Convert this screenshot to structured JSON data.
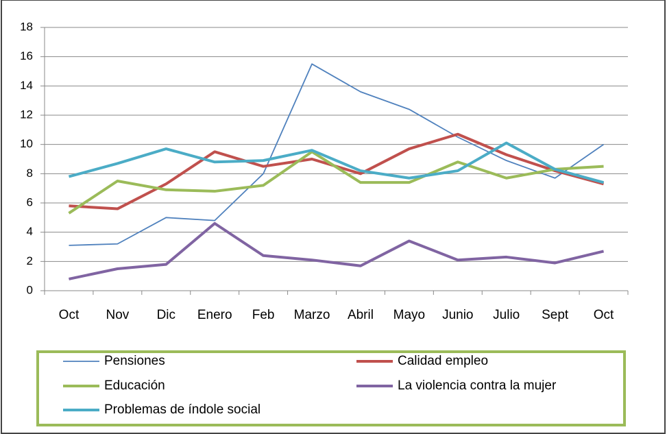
{
  "chart_data": {
    "type": "line",
    "categories": [
      "Oct",
      "Nov",
      "Dic",
      "Enero",
      "Feb",
      "Marzo",
      "Abril",
      "Mayo",
      "Junio",
      "Julio",
      "Sept",
      "Oct"
    ],
    "series": [
      {
        "name": "Pensiones",
        "color": "#4f81bd",
        "width": 1.8,
        "values": [
          3.1,
          3.2,
          5.0,
          4.8,
          8.0,
          15.5,
          13.6,
          12.4,
          10.5,
          8.9,
          7.7,
          10.0
        ]
      },
      {
        "name": "Calidad empleo",
        "color": "#c0504d",
        "width": 4,
        "values": [
          5.8,
          5.6,
          7.3,
          9.5,
          8.5,
          9.0,
          8.0,
          9.7,
          10.7,
          9.3,
          8.2,
          7.3
        ]
      },
      {
        "name": "Educación",
        "color": "#9bbb59",
        "width": 4,
        "values": [
          5.3,
          7.5,
          6.9,
          6.8,
          7.2,
          9.5,
          7.4,
          7.4,
          8.8,
          7.7,
          8.3,
          8.5
        ]
      },
      {
        "name": "La violencia contra la mujer",
        "color": "#8064a2",
        "width": 4,
        "values": [
          0.8,
          1.5,
          1.8,
          4.6,
          2.4,
          2.1,
          1.7,
          3.4,
          2.1,
          2.3,
          1.9,
          2.7
        ]
      },
      {
        "name": "Problemas de índole social",
        "color": "#4bacc6",
        "width": 4,
        "values": [
          7.8,
          8.7,
          9.7,
          8.8,
          8.9,
          9.6,
          8.2,
          7.7,
          8.2,
          10.1,
          8.3,
          7.4
        ]
      }
    ],
    "ylim": [
      0,
      18
    ],
    "yticks": [
      0,
      2,
      4,
      6,
      8,
      10,
      12,
      14,
      16,
      18
    ],
    "grid": true,
    "legend": "bottom"
  }
}
